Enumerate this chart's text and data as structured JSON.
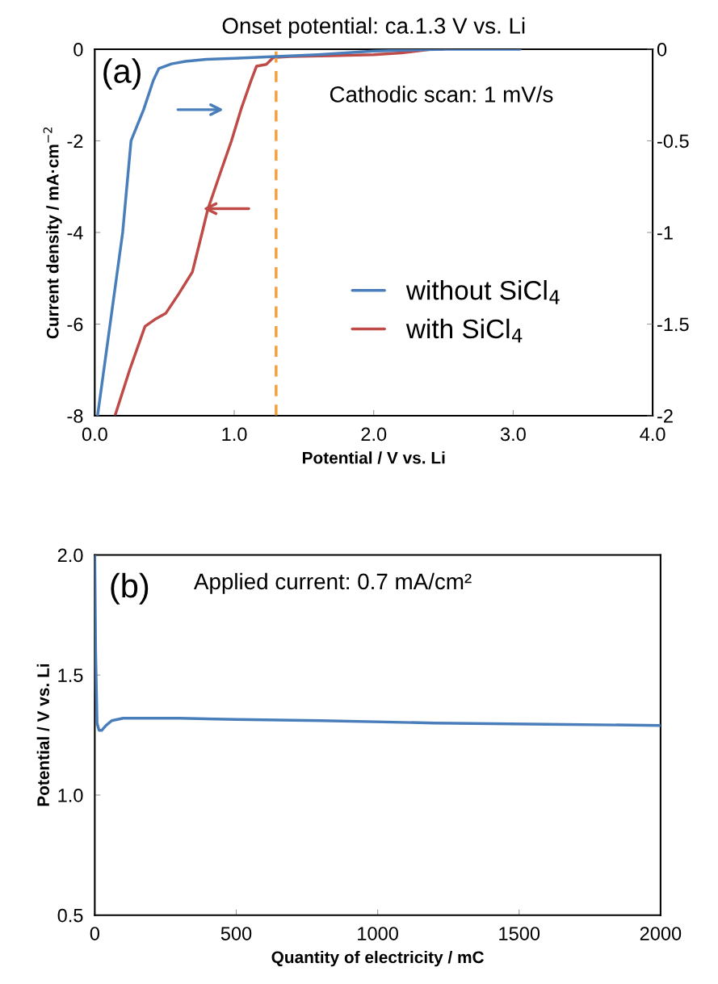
{
  "chart_data": [
    {
      "type": "line",
      "title": "Onset potential: ca.1.3 V vs. Li",
      "xlabel": "Potential / V vs. Li",
      "ylabel": "Current density / mA·cm$^{−2}$",
      "annotations": [
        "(a)",
        "Cathodic scan: 1 mV/s"
      ],
      "xlim": [
        0,
        4
      ],
      "xticks": [
        {
          "value": 0,
          "label": "0.0"
        },
        {
          "value": 1,
          "label": "1.0"
        },
        {
          "value": 2,
          "label": "2.0"
        },
        {
          "value": 3,
          "label": "3.0"
        },
        {
          "value": 4,
          "label": "4.0"
        }
      ],
      "ylim": [
        -8,
        0
      ],
      "yticks": [
        -8,
        -6,
        -4,
        -2,
        0
      ],
      "y2lim": [
        -2,
        0
      ],
      "y2ticks": [
        -2,
        -1.5,
        -1,
        -0.5,
        0
      ],
      "legend": "lower right",
      "ref_lines": [
        {
          "axis": "x",
          "value": 1.3,
          "label": null,
          "color": "#f5a040",
          "line_style": "dashed"
        }
      ],
      "series": [
        {
          "name": "without SiCl$_{4}$",
          "color": "#4a7ebb",
          "axis": "y2",
          "x": [
            0.02,
            0.11,
            0.2,
            0.26,
            0.35,
            0.42,
            0.46,
            0.55,
            0.65,
            0.8,
            1.0,
            1.3,
            1.6,
            2.0,
            2.5,
            3.05
          ],
          "values": [
            -2,
            -1.5,
            -1.0,
            -0.5,
            -0.33,
            -0.17,
            -0.105,
            -0.08,
            -0.066,
            -0.055,
            -0.05,
            -0.04,
            -0.03,
            -0.01,
            0,
            0
          ]
        },
        {
          "name": "with SiCl$_{4}$",
          "color": "#be4b48",
          "axis": "y",
          "x": [
            0.145,
            0.25,
            0.36,
            0.43,
            0.51,
            0.6,
            0.7,
            0.77,
            0.81,
            0.9,
            0.98,
            1.05,
            1.12,
            1.16,
            1.23,
            1.28,
            1.4,
            1.7,
            2.0,
            2.2,
            2.41,
            2.5
          ],
          "values": [
            -8,
            -7,
            -6.05,
            -5.9,
            -5.76,
            -5.35,
            -4.86,
            -4.0,
            -3.5,
            -2.7,
            -2.0,
            -1.3,
            -0.69,
            -0.37,
            -0.33,
            -0.18,
            -0.16,
            -0.14,
            -0.12,
            -0.08,
            0,
            0
          ]
        }
      ]
    },
    {
      "type": "line",
      "xlabel": "Quantity of electricity / mC",
      "ylabel": "Potential / V vs. Li",
      "annotations": [
        "(b)",
        "Applied current: 0.7 mA/cm²"
      ],
      "xlim": [
        0,
        2000
      ],
      "xticks": [
        0,
        500,
        1000,
        1500,
        2000
      ],
      "ylim": [
        0.5,
        2.0
      ],
      "yticks": [
        {
          "value": 0.5,
          "label": "0.5"
        },
        {
          "value": 1.0,
          "label": "1.0"
        },
        {
          "value": 1.5,
          "label": "1.5"
        },
        {
          "value": 2.0,
          "label": "2.0"
        }
      ],
      "series": [
        {
          "color": "#4a7ebb",
          "x": [
            0,
            3,
            8,
            15,
            25,
            40,
            60,
            100,
            300,
            500,
            800,
            1200,
            1600,
            2000
          ],
          "values": [
            2.0,
            1.6,
            1.3,
            1.27,
            1.27,
            1.29,
            1.31,
            1.32,
            1.32,
            1.315,
            1.31,
            1.3,
            1.295,
            1.29
          ]
        }
      ]
    }
  ]
}
